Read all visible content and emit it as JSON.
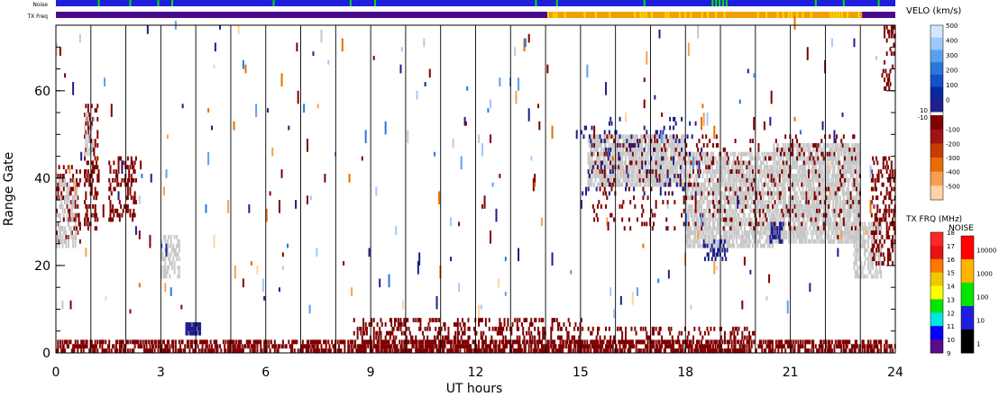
{
  "chart_data": {
    "type": "heatmap",
    "title": "",
    "xlabel": "UT hours",
    "ylabel": "Range Gate",
    "xlim": [
      0,
      24
    ],
    "ylim": [
      0,
      75
    ],
    "xticks": [
      0,
      3,
      6,
      9,
      12,
      15,
      18,
      21,
      24
    ],
    "yticks": [
      0,
      20,
      40,
      60
    ],
    "vertical_lines_every_hours": 1,
    "top_bars": {
      "noise": {
        "label": "Noise",
        "base_color": "#1e1edc",
        "green_marks_ut": [
          1.2,
          2.1,
          2.9,
          3.3,
          6.2,
          8.4,
          9.1,
          13.7,
          14.3,
          16.8,
          18.75,
          18.85,
          18.95,
          19.05,
          19.15,
          21.7,
          22.5,
          23.5
        ]
      },
      "tx_freq": {
        "label": "TX Freq",
        "segments": [
          {
            "start": 0,
            "end": 14.05,
            "color": "#4b0a8c"
          },
          {
            "start": 14.05,
            "end": 23.05,
            "color": "#f0a000"
          },
          {
            "start": 23.05,
            "end": 24,
            "color": "#4b0a8c"
          }
        ]
      }
    },
    "regions": [
      {
        "kind": "dense",
        "color": "#800000",
        "x": [
          0,
          24
        ],
        "y": [
          0,
          3
        ],
        "density": 0.55
      },
      {
        "kind": "dense",
        "color": "#800000",
        "x": [
          8.5,
          15
        ],
        "y": [
          0,
          8
        ],
        "density": 0.3
      },
      {
        "kind": "dense",
        "color": "#800000",
        "x": [
          15,
          20
        ],
        "y": [
          0,
          6
        ],
        "density": 0.2
      },
      {
        "kind": "dense",
        "color": "#1e1e8c",
        "x": [
          3.7,
          4.1
        ],
        "y": [
          4,
          7
        ],
        "density": 0.85
      },
      {
        "kind": "dense",
        "color": "#800000",
        "x": [
          0,
          0.7
        ],
        "y": [
          25,
          43
        ],
        "density": 0.3
      },
      {
        "kind": "dense",
        "color": "#c8c8c8",
        "x": [
          0,
          0.6
        ],
        "y": [
          24,
          40
        ],
        "density": 0.35
      },
      {
        "kind": "dense",
        "color": "#800000",
        "x": [
          0.8,
          1.2
        ],
        "y": [
          28,
          57
        ],
        "density": 0.3
      },
      {
        "kind": "dense",
        "color": "#c8c8c8",
        "x": [
          0.8,
          1.1
        ],
        "y": [
          45,
          55
        ],
        "density": 0.3
      },
      {
        "kind": "dense",
        "color": "#800000",
        "x": [
          1.5,
          2.3
        ],
        "y": [
          30,
          45
        ],
        "density": 0.3
      },
      {
        "kind": "dense",
        "color": "#c8c8c8",
        "x": [
          3.0,
          3.5
        ],
        "y": [
          17,
          27
        ],
        "density": 0.45
      },
      {
        "kind": "dense",
        "color": "#c8c8c8",
        "x": [
          15.2,
          18
        ],
        "y": [
          38,
          50
        ],
        "density": 0.7
      },
      {
        "kind": "dense",
        "color": "#c8c8c8",
        "x": [
          18,
          20.5
        ],
        "y": [
          24,
          46
        ],
        "density": 0.62
      },
      {
        "kind": "dense",
        "color": "#c8c8c8",
        "x": [
          20.5,
          23
        ],
        "y": [
          25,
          48
        ],
        "density": 0.68
      },
      {
        "kind": "dense",
        "color": "#c8c8c8",
        "x": [
          22.8,
          23.6
        ],
        "y": [
          17,
          30
        ],
        "density": 0.5
      },
      {
        "kind": "dense",
        "color": "#800000",
        "x": [
          15.3,
          23
        ],
        "y": [
          28,
          50
        ],
        "density": 0.08
      },
      {
        "kind": "dense",
        "color": "#1e1e8c",
        "x": [
          18.5,
          19.2
        ],
        "y": [
          21,
          26
        ],
        "density": 0.3
      },
      {
        "kind": "dense",
        "color": "#1e1e8c",
        "x": [
          20.4,
          20.8
        ],
        "y": [
          25,
          30
        ],
        "density": 0.4
      },
      {
        "kind": "dense",
        "color": "#1e1e8c",
        "x": [
          15,
          18.5
        ],
        "y": [
          36,
          54
        ],
        "density": 0.06
      },
      {
        "kind": "dense",
        "color": "#800000",
        "x": [
          23.3,
          24
        ],
        "y": [
          20,
          45
        ],
        "density": 0.3
      },
      {
        "kind": "dense",
        "color": "#800000",
        "x": [
          23.6,
          24
        ],
        "y": [
          60,
          75
        ],
        "density": 0.25
      },
      {
        "kind": "scatter",
        "x": [
          0,
          24
        ],
        "y": [
          8,
          75
        ],
        "density": 0.005
      }
    ],
    "velocity_colorbar": {
      "title": "VELO (km/s)",
      "positive": {
        "labels": [
          500,
          400,
          300,
          200,
          100,
          0
        ],
        "colors": [
          "#d2e6ff",
          "#a0c8ff",
          "#5aa0f0",
          "#2878dc",
          "#1450c8",
          "#0a28a0",
          "#1e1e8c"
        ]
      },
      "split_labels": [
        "10",
        "-10"
      ],
      "negative": {
        "labels": [
          -100,
          -200,
          -300,
          -400,
          -500
        ],
        "colors": [
          "#800000",
          "#a01414",
          "#c83c00",
          "#e66e00",
          "#f5a050",
          "#ffd2a8"
        ]
      }
    },
    "txfrq_colorbar": {
      "title": "TX FRQ (MHz)",
      "labels": [
        18,
        17,
        16,
        15,
        14,
        13,
        12,
        11,
        10,
        9
      ],
      "colors": [
        "#ff2828",
        "#e61414",
        "#ff7800",
        "#f0c800",
        "#ffff00",
        "#00e600",
        "#00e6e6",
        "#0000ff",
        "#5a0a8c"
      ]
    },
    "noise_colorbar": {
      "title": "NOISE",
      "labels": [
        "10000",
        "1000",
        "100",
        "10",
        "1"
      ],
      "colors": [
        "#ff0000",
        "#ffb400",
        "#00e600",
        "#1e1edc",
        "#000000"
      ]
    }
  }
}
